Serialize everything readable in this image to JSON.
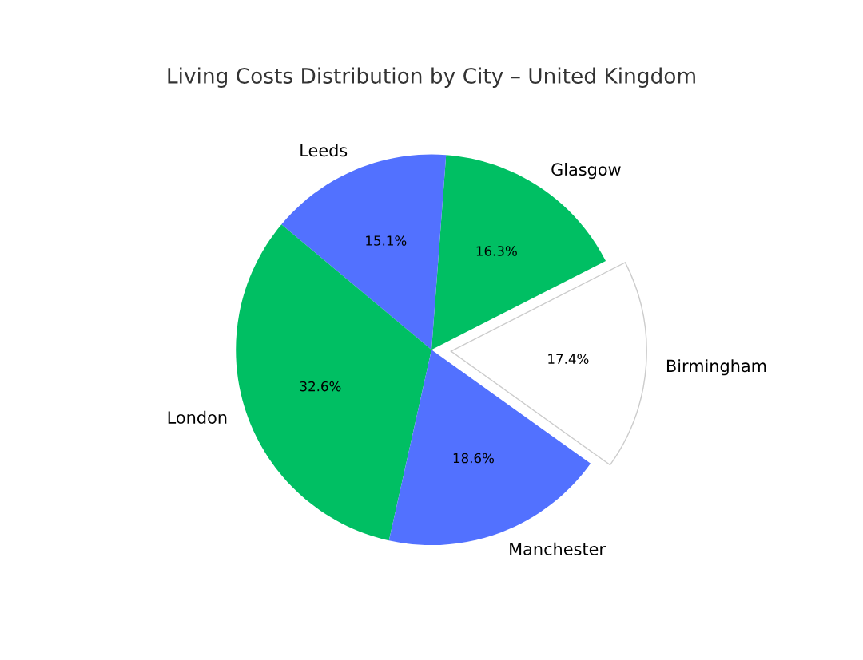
{
  "chart_data": {
    "type": "pie",
    "title": "Living Costs Distribution by City – United Kingdom",
    "categories": [
      "Birmingham",
      "Glasgow",
      "Leeds",
      "London",
      "Manchester"
    ],
    "values": [
      17.4,
      16.3,
      15.1,
      32.6,
      18.6
    ],
    "value_labels": [
      "17.4%",
      "16.3%",
      "15.1%",
      "32.6%",
      "18.6%"
    ],
    "colors": [
      "#ffffff",
      "#00bf63",
      "#5271ff",
      "#00bf63",
      "#5271ff"
    ]
  }
}
